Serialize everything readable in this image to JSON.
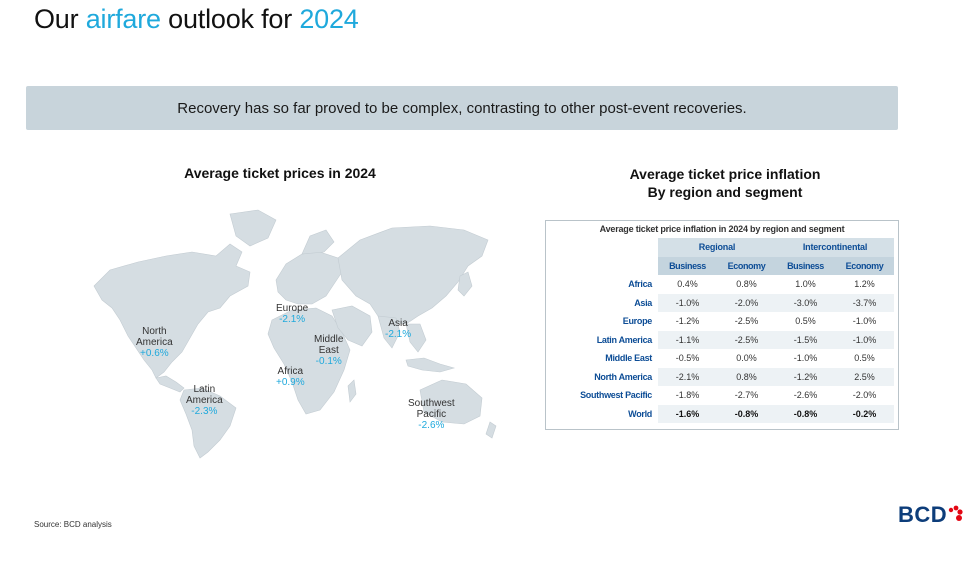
{
  "title": {
    "part1": "Our ",
    "accent1": "airfare",
    "part2": " outlook for ",
    "accent2": "2024"
  },
  "banner": "Recovery has so far proved to be complex, contrasting to other post-event recoveries.",
  "map": {
    "title": "Average ticket prices in 2024",
    "regions": [
      {
        "name": "North\nAmerica",
        "value": "+0.6%"
      },
      {
        "name": "Europe",
        "value": "-2.1%"
      },
      {
        "name": "Middle\nEast",
        "value": "-0.1%"
      },
      {
        "name": "Asia",
        "value": "-2.1%"
      },
      {
        "name": "Africa",
        "value": "+0.9%"
      },
      {
        "name": "Latin\nAmerica",
        "value": "-2.3%"
      },
      {
        "name": "Southwest\nPacific",
        "value": "-2.6%"
      }
    ]
  },
  "table_section": {
    "title_line1": "Average ticket price inflation",
    "title_line2": "By region and segment",
    "caption": "Average ticket price inflation in 2024 by region and segment",
    "group_headers": [
      "Regional",
      "Intercontinental"
    ],
    "sub_headers": [
      "Business",
      "Economy",
      "Business",
      "Economy"
    ],
    "rows": [
      {
        "region": "Africa",
        "values": [
          "0.4%",
          "0.8%",
          "1.0%",
          "1.2%"
        ]
      },
      {
        "region": "Asia",
        "values": [
          "-1.0%",
          "-2.0%",
          "-3.0%",
          "-3.7%"
        ]
      },
      {
        "region": "Europe",
        "values": [
          "-1.2%",
          "-2.5%",
          "0.5%",
          "-1.0%"
        ]
      },
      {
        "region": "Latin America",
        "values": [
          "-1.1%",
          "-2.5%",
          "-1.5%",
          "-1.0%"
        ]
      },
      {
        "region": "Middle East",
        "values": [
          "-0.5%",
          "0.0%",
          "-1.0%",
          "0.5%"
        ]
      },
      {
        "region": "North America",
        "values": [
          "-2.1%",
          "0.8%",
          "-1.2%",
          "2.5%"
        ]
      },
      {
        "region": "Southwest Pacific",
        "values": [
          "-1.8%",
          "-2.7%",
          "-2.6%",
          "-2.0%"
        ]
      },
      {
        "region": "World",
        "values": [
          "-1.6%",
          "-0.8%",
          "-0.8%",
          "-0.2%"
        ]
      }
    ]
  },
  "source": "Source: BCD analysis",
  "logo": {
    "text": "BCD",
    "dot_colors": [
      "#e30613",
      "#e30613",
      "#e30613",
      "#e30613"
    ]
  },
  "colors": {
    "accent": "#1fa9dc",
    "banner": "#c8d4db",
    "table_header": "#c4d4de",
    "table_text": "#0d4d96"
  }
}
